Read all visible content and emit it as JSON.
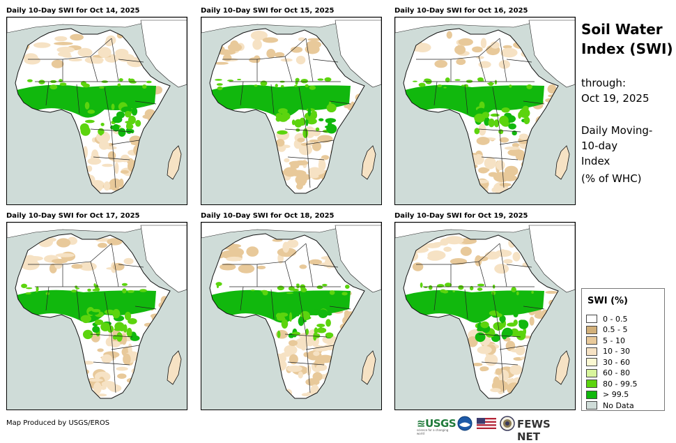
{
  "panels": [
    {
      "title": "Daily 10-Day SWI for Oct 14, 2025"
    },
    {
      "title": "Daily 10-Day SWI for Oct 15, 2025"
    },
    {
      "title": "Daily 10-Day SWI for Oct 16, 2025"
    },
    {
      "title": "Daily 10-Day SWI for Oct 17, 2025"
    },
    {
      "title": "Daily 10-Day SWI for Oct 18, 2025"
    },
    {
      "title": "Daily 10-Day SWI for Oct 19, 2025"
    }
  ],
  "side": {
    "title_line1": "Soil Water",
    "title_line2": "Index (SWI)",
    "through_label": "through:",
    "through_date": "Oct 19, 2025",
    "desc_line1": "Daily Moving-",
    "desc_line2": "10-day",
    "desc_line3": "Index",
    "desc_line4": "(% of WHC)"
  },
  "legend": {
    "title": "SWI (%)",
    "items": [
      {
        "label": "0 - 0.5",
        "color": "#ffffff"
      },
      {
        "label": "0.5 - 5",
        "color": "#d2b07a"
      },
      {
        "label": "5 - 10",
        "color": "#e8c99a"
      },
      {
        "label": "10 - 30",
        "color": "#f6e2c4"
      },
      {
        "label": "30 - 60",
        "color": "#fbf8d2"
      },
      {
        "label": "60 - 80",
        "color": "#d8f59c"
      },
      {
        "label": "80 - 99.5",
        "color": "#5cd40e"
      },
      {
        "label": "> 99.5",
        "color": "#11b80d"
      },
      {
        "label": "No Data",
        "color": "#cfdcd8"
      }
    ]
  },
  "credit": "Map Produced by USGS/EROS",
  "logos": {
    "usgs": "≊USGS",
    "usgs_tagline": "science for a changing world",
    "fewsnet": "FEWS NET"
  },
  "colors": {
    "ocean": "#cfdcd8",
    "land_dry": "#ffffff",
    "wet": "#11b80d",
    "moist": "#5cd40e",
    "sand": "#e8c99a"
  }
}
